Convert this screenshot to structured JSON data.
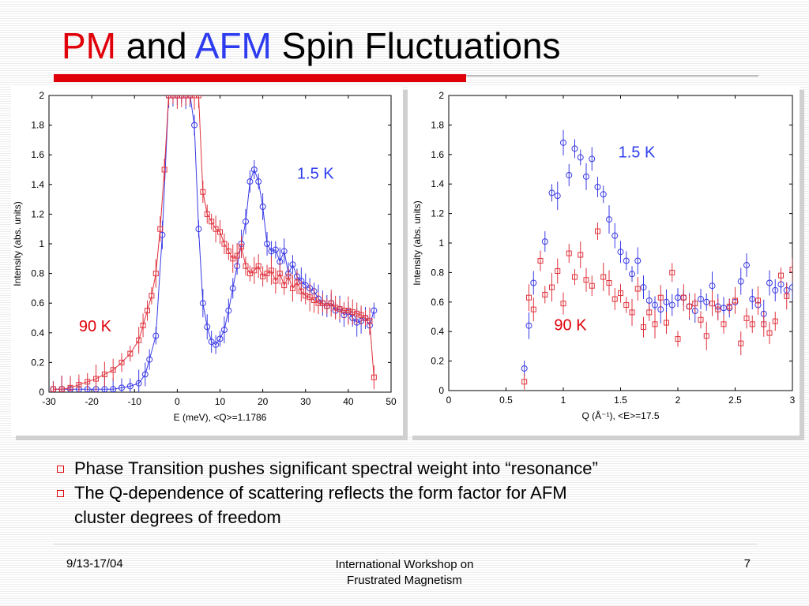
{
  "title": {
    "part1": "PM",
    "part2": " and ",
    "part3": "AFM",
    "part4": " Spin Fluctuations",
    "accent_red": "#e0000a",
    "accent_blue": "#2e3cf0"
  },
  "chart_data": [
    {
      "type": "scatter",
      "xlabel": "E (meV), <Q>=1.1786",
      "ylabel": "Intensity (abs. units)",
      "xlim": [
        -30,
        50
      ],
      "ylim": [
        0,
        2
      ],
      "xticks": [
        -30,
        -20,
        -10,
        0,
        10,
        20,
        30,
        40,
        50
      ],
      "yticks": [
        0,
        0.2,
        0.4,
        0.6,
        0.8,
        1,
        1.2,
        1.4,
        1.6,
        1.8,
        2
      ],
      "ytick_labels": [
        "0",
        "0.2",
        "0.4",
        "0.6",
        "0.8",
        "1",
        "1.2",
        "1.4",
        "1.6",
        "1.8",
        "2"
      ],
      "grid": false,
      "annotations": [
        {
          "text": "1.5 K",
          "color": "#2e3cf0",
          "x": 28,
          "y": 1.44
        },
        {
          "text": "90 K",
          "color": "#e0000a",
          "x": -23,
          "y": 0.41
        }
      ],
      "series": [
        {
          "name": "1.5 K",
          "color": "#3a3ae6",
          "marker": "circle",
          "connected": true,
          "x": [
            -29,
            -27,
            -25,
            -23,
            -21,
            -19,
            -17,
            -15,
            -13,
            -11,
            -9,
            -7.5,
            -6.5,
            -5,
            -3.5,
            -2,
            -1,
            0,
            1,
            2,
            3,
            4,
            5,
            6,
            7,
            8,
            9,
            10,
            11,
            12,
            13,
            14,
            15,
            16,
            17,
            18,
            19,
            20,
            21,
            22,
            23,
            24,
            25,
            26,
            27,
            28,
            29,
            30,
            31,
            32,
            33,
            34,
            35,
            36,
            37,
            38,
            39,
            40,
            41,
            42,
            43,
            44,
            45,
            46
          ],
          "y": [
            0.02,
            0.02,
            0.02,
            0.02,
            0.02,
            0.02,
            0.02,
            0.02,
            0.03,
            0.04,
            0.06,
            0.12,
            0.22,
            0.38,
            1.06,
            2.0,
            2.0,
            2.0,
            2.0,
            2.0,
            2.0,
            1.8,
            1.1,
            0.6,
            0.44,
            0.34,
            0.32,
            0.36,
            0.42,
            0.55,
            0.7,
            0.85,
            1.0,
            1.15,
            1.42,
            1.5,
            1.42,
            1.25,
            1.0,
            0.95,
            0.96,
            0.88,
            0.95,
            0.8,
            0.86,
            0.78,
            0.75,
            0.72,
            0.7,
            0.68,
            0.63,
            0.6,
            0.58,
            0.6,
            0.55,
            0.56,
            0.52,
            0.54,
            0.5,
            0.47,
            0.48,
            0.5,
            0.45,
            0.55
          ]
        },
        {
          "name": "90 K",
          "color": "#e0323c",
          "marker": "square",
          "connected": true,
          "x": [
            -29,
            -27,
            -25,
            -23,
            -21,
            -19,
            -17,
            -15,
            -13,
            -11,
            -9,
            -8,
            -7,
            -6,
            -5,
            -4,
            -3,
            -2,
            -1,
            0,
            1,
            2,
            3,
            4,
            5,
            6,
            7,
            8,
            9,
            10,
            11,
            12,
            13,
            14,
            15,
            16,
            17,
            18,
            19,
            20,
            21,
            22,
            23,
            24,
            25,
            26,
            27,
            28,
            29,
            30,
            31,
            32,
            33,
            34,
            35,
            36,
            37,
            38,
            39,
            40,
            41,
            42,
            43,
            44,
            45,
            46
          ],
          "y": [
            0.02,
            0.02,
            0.03,
            0.05,
            0.07,
            0.09,
            0.12,
            0.15,
            0.2,
            0.26,
            0.35,
            0.45,
            0.55,
            0.65,
            0.8,
            1.1,
            1.5,
            2.0,
            2.0,
            2.0,
            2.0,
            2.0,
            2.0,
            2.0,
            2.0,
            1.35,
            1.2,
            1.15,
            1.1,
            1.08,
            1.0,
            0.95,
            0.9,
            0.92,
            0.98,
            0.85,
            0.8,
            0.82,
            0.85,
            0.78,
            0.8,
            0.82,
            0.75,
            0.8,
            0.72,
            0.78,
            0.7,
            0.74,
            0.68,
            0.65,
            0.64,
            0.62,
            0.6,
            0.6,
            0.58,
            0.6,
            0.57,
            0.56,
            0.55,
            0.55,
            0.54,
            0.53,
            0.52,
            0.5,
            0.48,
            0.1
          ]
        }
      ]
    },
    {
      "type": "scatter",
      "xlabel": "Q (Å⁻¹), <E>=17.5",
      "ylabel": "Intensity (abs. units)",
      "xlim": [
        0,
        3
      ],
      "ylim": [
        0,
        2
      ],
      "xticks": [
        0,
        0.5,
        1,
        1.5,
        2,
        2.5,
        3
      ],
      "yticks": [
        0,
        0.2,
        0.4,
        0.6,
        0.8,
        1,
        1.2,
        1.4,
        1.6,
        1.8,
        2
      ],
      "ytick_labels": [
        "0",
        "0.2",
        "0.4",
        "0.6",
        "0.8",
        "1",
        "1.2",
        "1.4",
        "1.6",
        "1.8",
        "2"
      ],
      "grid": false,
      "annotations": [
        {
          "text": "1.5 K",
          "color": "#2e3cf0",
          "x": 1.48,
          "y": 1.58
        },
        {
          "text": "90 K",
          "color": "#e0000a",
          "x": 0.92,
          "y": 0.41
        }
      ],
      "series": [
        {
          "name": "1.5 K",
          "color": "#3a3ae6",
          "marker": "circle",
          "connected": false,
          "x": [
            0.66,
            0.7,
            0.74,
            0.84,
            0.9,
            0.95,
            1.0,
            1.05,
            1.1,
            1.15,
            1.2,
            1.25,
            1.3,
            1.35,
            1.4,
            1.45,
            1.5,
            1.55,
            1.6,
            1.65,
            1.7,
            1.75,
            1.8,
            1.85,
            1.9,
            1.95,
            2.0,
            2.05,
            2.1,
            2.15,
            2.2,
            2.25,
            2.3,
            2.35,
            2.4,
            2.45,
            2.5,
            2.55,
            2.6,
            2.65,
            2.7,
            2.75,
            2.8,
            2.85,
            2.9,
            2.95,
            3.0
          ],
          "y": [
            0.15,
            0.44,
            0.73,
            1.01,
            1.34,
            1.32,
            1.68,
            1.46,
            1.64,
            1.58,
            1.45,
            1.57,
            1.38,
            1.33,
            1.16,
            1.05,
            0.94,
            0.88,
            0.79,
            0.88,
            0.7,
            0.61,
            0.58,
            0.55,
            0.6,
            0.58,
            0.63,
            0.63,
            0.57,
            0.54,
            0.62,
            0.6,
            0.71,
            0.57,
            0.56,
            0.56,
            0.6,
            0.74,
            0.85,
            0.62,
            0.58,
            0.52,
            0.73,
            0.68,
            0.72,
            0.68,
            0.7
          ]
        },
        {
          "name": "90 K",
          "color": "#e0323c",
          "marker": "square",
          "connected": false,
          "x": [
            0.66,
            0.7,
            0.74,
            0.8,
            0.84,
            0.9,
            0.95,
            1.0,
            1.05,
            1.1,
            1.15,
            1.2,
            1.25,
            1.3,
            1.35,
            1.4,
            1.45,
            1.5,
            1.55,
            1.6,
            1.65,
            1.7,
            1.75,
            1.8,
            1.85,
            1.9,
            1.95,
            2.0,
            2.05,
            2.1,
            2.15,
            2.2,
            2.25,
            2.3,
            2.35,
            2.4,
            2.45,
            2.5,
            2.55,
            2.6,
            2.65,
            2.7,
            2.75,
            2.8,
            2.85,
            2.9,
            2.95,
            3.0
          ],
          "y": [
            0.06,
            0.63,
            0.55,
            0.88,
            0.65,
            0.7,
            0.81,
            0.59,
            0.93,
            0.77,
            0.92,
            0.75,
            0.71,
            1.08,
            0.77,
            0.73,
            0.62,
            0.66,
            0.58,
            0.53,
            0.69,
            0.43,
            0.53,
            0.45,
            0.63,
            0.46,
            0.8,
            0.35,
            0.63,
            0.57,
            0.59,
            0.48,
            0.37,
            0.59,
            0.55,
            0.45,
            0.57,
            0.61,
            0.32,
            0.49,
            0.45,
            0.61,
            0.45,
            0.39,
            0.47,
            0.78,
            0.64,
            0.82
          ]
        }
      ]
    }
  ],
  "bullets": [
    {
      "line1": "Phase Transition pushes significant spectral weight into “resonance”",
      "line2": ""
    },
    {
      "line1": "The Q-dependence of scattering reflects the form factor for AFM",
      "line2": "cluster degrees of freedom"
    }
  ],
  "footer": {
    "date": "9/13-17/04",
    "conf_line1": "International Workshop on",
    "conf_line2": "Frustrated Magnetism",
    "page": "7"
  }
}
